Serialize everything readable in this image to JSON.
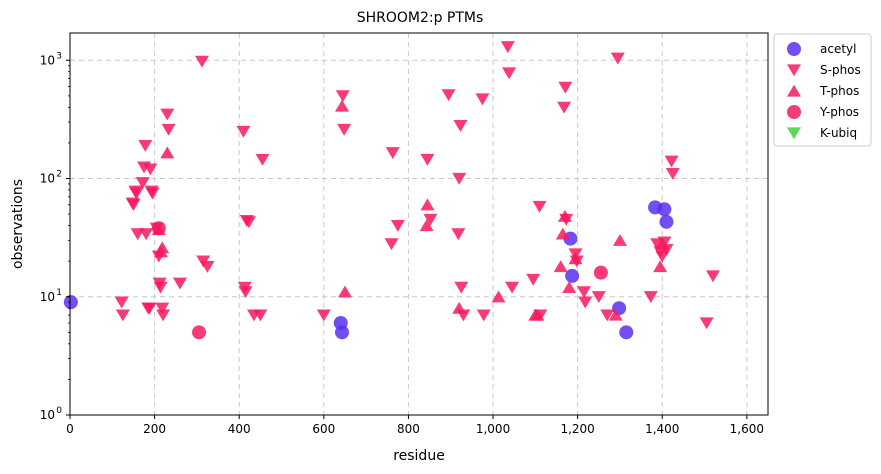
{
  "chart_data": {
    "type": "scatter",
    "title": "SHROOM2:p PTMs",
    "xlabel": "residue",
    "ylabel": "observations",
    "xlim": [
      0,
      1650
    ],
    "ylim": [
      1,
      1700
    ],
    "yscale": "log",
    "grid": true,
    "legend_position": "top-right-outside",
    "x_ticks": [
      0,
      200,
      400,
      600,
      800,
      1000,
      1200,
      1400,
      1600
    ],
    "x_tick_labels": [
      "0",
      "200",
      "400",
      "600",
      "800",
      "1,000",
      "1,200",
      "1,400",
      "1,600"
    ],
    "y_ticks": [
      1,
      10,
      100,
      1000
    ],
    "y_tick_labels": [
      "10",
      "10",
      "10",
      "10"
    ],
    "y_tick_exponents": [
      "0",
      "1",
      "2",
      "3"
    ],
    "series": [
      {
        "name": "acetyl",
        "marker": "circle",
        "color": "#5b2ff0",
        "points": [
          [
            2,
            9
          ],
          [
            640,
            6
          ],
          [
            643,
            5
          ],
          [
            1183,
            31
          ],
          [
            1187,
            15
          ],
          [
            1298,
            8
          ],
          [
            1315,
            5
          ],
          [
            1383,
            57
          ],
          [
            1405,
            55
          ],
          [
            1410,
            43
          ]
        ]
      },
      {
        "name": "S-phos",
        "marker": "triangle-down",
        "color": "#f7195d",
        "points": [
          [
            122,
            9
          ],
          [
            125,
            7
          ],
          [
            148,
            62
          ],
          [
            150,
            60
          ],
          [
            155,
            78
          ],
          [
            157,
            75
          ],
          [
            160,
            34
          ],
          [
            172,
            92
          ],
          [
            175,
            125
          ],
          [
            178,
            190
          ],
          [
            180,
            34
          ],
          [
            185,
            8
          ],
          [
            188,
            8
          ],
          [
            190,
            120
          ],
          [
            193,
            78
          ],
          [
            195,
            75
          ],
          [
            205,
            38
          ],
          [
            210,
            22
          ],
          [
            212,
            13
          ],
          [
            214,
            12
          ],
          [
            218,
            8
          ],
          [
            220,
            7
          ],
          [
            230,
            350
          ],
          [
            233,
            260
          ],
          [
            260,
            13
          ],
          [
            312,
            980
          ],
          [
            315,
            20
          ],
          [
            325,
            18
          ],
          [
            410,
            250
          ],
          [
            413,
            12
          ],
          [
            415,
            11
          ],
          [
            418,
            44
          ],
          [
            423,
            43
          ],
          [
            435,
            7
          ],
          [
            450,
            7
          ],
          [
            455,
            145
          ],
          [
            600,
            7
          ],
          [
            645,
            500
          ],
          [
            648,
            260
          ],
          [
            760,
            28
          ],
          [
            763,
            165
          ],
          [
            775,
            40
          ],
          [
            845,
            145
          ],
          [
            852,
            45
          ],
          [
            895,
            510
          ],
          [
            918,
            34
          ],
          [
            920,
            100
          ],
          [
            923,
            280
          ],
          [
            925,
            12
          ],
          [
            930,
            7
          ],
          [
            975,
            470
          ],
          [
            978,
            7
          ],
          [
            1035,
            1300
          ],
          [
            1038,
            780
          ],
          [
            1045,
            12
          ],
          [
            1095,
            14
          ],
          [
            1110,
            58
          ],
          [
            1112,
            7
          ],
          [
            1168,
            400
          ],
          [
            1171,
            590
          ],
          [
            1173,
            45
          ],
          [
            1195,
            23
          ],
          [
            1198,
            20
          ],
          [
            1215,
            11
          ],
          [
            1218,
            9
          ],
          [
            1250,
            10
          ],
          [
            1270,
            7
          ],
          [
            1295,
            1040
          ],
          [
            1373,
            10
          ],
          [
            1388,
            28
          ],
          [
            1396,
            24
          ],
          [
            1400,
            22
          ],
          [
            1405,
            29
          ],
          [
            1410,
            25
          ],
          [
            1422,
            140
          ],
          [
            1425,
            110
          ],
          [
            1505,
            6
          ],
          [
            1520,
            15
          ]
        ]
      },
      {
        "name": "T-phos",
        "marker": "triangle-up",
        "color": "#f7195d",
        "points": [
          [
            210,
            37
          ],
          [
            215,
            24
          ],
          [
            218,
            26
          ],
          [
            230,
            165
          ],
          [
            643,
            410
          ],
          [
            650,
            11
          ],
          [
            843,
            40
          ],
          [
            845,
            60
          ],
          [
            920,
            8
          ],
          [
            1013,
            10
          ],
          [
            1100,
            7
          ],
          [
            1105,
            7
          ],
          [
            1160,
            18
          ],
          [
            1165,
            34
          ],
          [
            1170,
            48
          ],
          [
            1180,
            12
          ],
          [
            1195,
            21
          ],
          [
            1290,
            7
          ],
          [
            1300,
            30
          ],
          [
            1395,
            18
          ],
          [
            1400,
            28
          ]
        ]
      },
      {
        "name": "Y-phos",
        "marker": "circle",
        "color": "#f7195d",
        "points": [
          [
            210,
            38
          ],
          [
            305,
            5
          ],
          [
            1255,
            16
          ]
        ]
      },
      {
        "name": "K-ubiq",
        "marker": "triangle-down",
        "color": "#3bd43b",
        "points": []
      }
    ]
  }
}
